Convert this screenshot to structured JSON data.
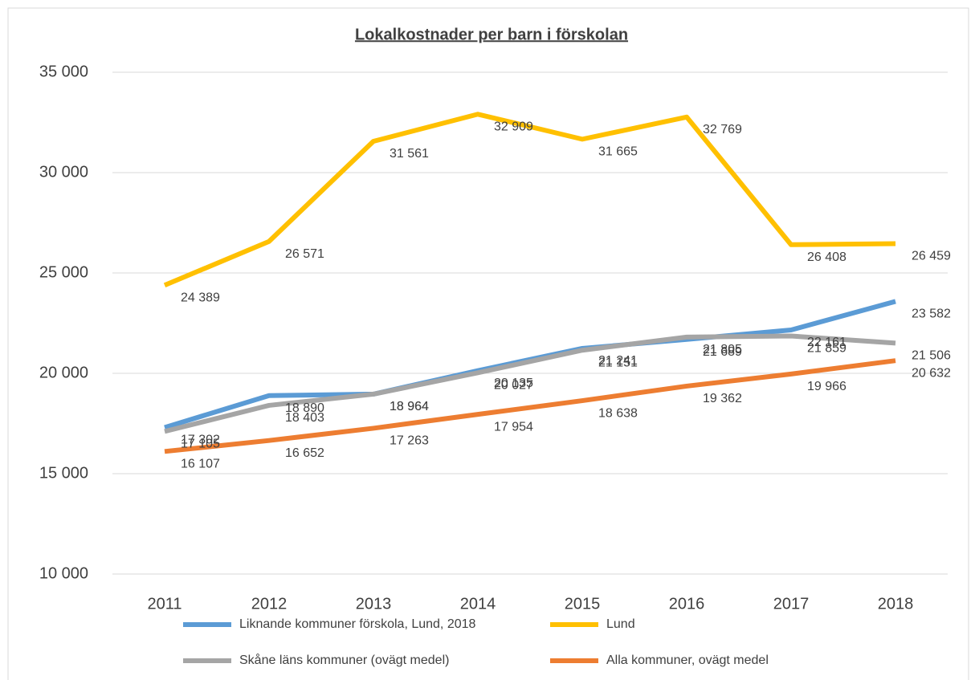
{
  "chart_data": {
    "type": "line",
    "title": "Lokalkostnader per barn i förskolan",
    "categories": [
      "2011",
      "2012",
      "2013",
      "2014",
      "2015",
      "2016",
      "2017",
      "2018"
    ],
    "series": [
      {
        "name": "Liknande kommuner förskola, Lund, 2018",
        "color": "#5b9bd5",
        "values": [
          17302,
          18890,
          18964,
          20135,
          21241,
          21689,
          22161,
          23582
        ],
        "value_labels": [
          "17 302",
          "18 890",
          "18 964",
          "20 135",
          "21 241",
          "21 689",
          "22 161",
          "23 582"
        ]
      },
      {
        "name": "Lund",
        "color": "#ffc000",
        "values": [
          24389,
          26571,
          31561,
          32909,
          31665,
          32769,
          26408,
          26459
        ],
        "value_labels": [
          "24 389",
          "26 571",
          "31 561",
          "32 909",
          "31 665",
          "32 769",
          "26 408",
          "26 459"
        ]
      },
      {
        "name": "Skåne läns kommuner (ovägt medel)",
        "color": "#a5a5a5",
        "values": [
          17105,
          18403,
          18964,
          20027,
          21151,
          21805,
          21859,
          21506
        ],
        "value_labels": [
          "17 105",
          "18 403",
          "18 964",
          "20 027",
          "21 151",
          "21 805",
          "21 859",
          "21 506"
        ]
      },
      {
        "name": "Alla kommuner, ovägt medel",
        "color": "#ed7d31",
        "values": [
          16107,
          16652,
          17263,
          17954,
          18638,
          19362,
          19966,
          20632
        ],
        "value_labels": [
          "16 107",
          "16 652",
          "17 263",
          "17 954",
          "18 638",
          "19 362",
          "19 966",
          "20 632"
        ]
      }
    ],
    "ylim": [
      10000,
      35000
    ],
    "yticks": [
      {
        "value": 10000,
        "label": "10 000"
      },
      {
        "value": 15000,
        "label": "15 000"
      },
      {
        "value": 20000,
        "label": "20 000"
      },
      {
        "value": 25000,
        "label": "25 000"
      },
      {
        "value": 30000,
        "label": "30 000"
      },
      {
        "value": 35000,
        "label": "35 000"
      }
    ],
    "grid": true
  }
}
